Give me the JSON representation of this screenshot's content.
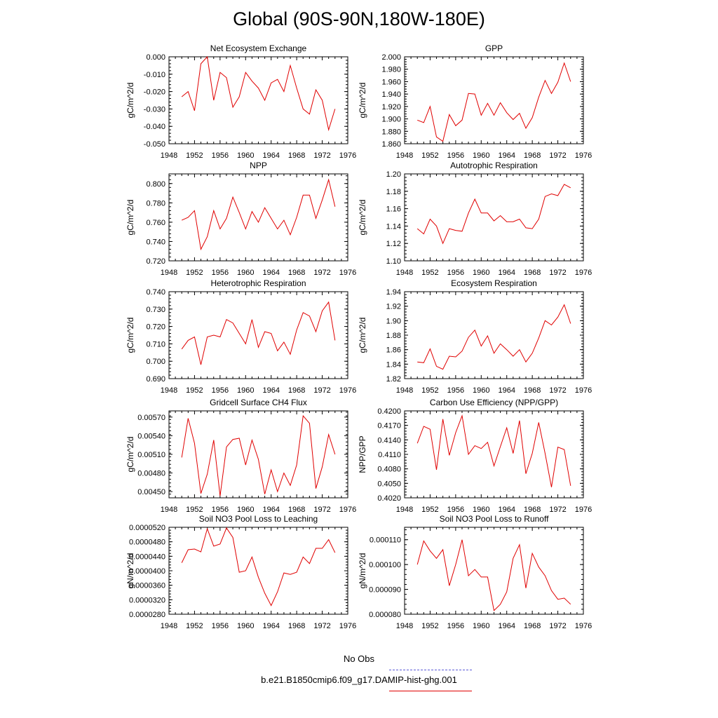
{
  "title": "Global (90S-90N,180W-180E)",
  "x_tick_labels": [
    "1948",
    "1952",
    "1956",
    "1960",
    "1964",
    "1968",
    "1972",
    "1976"
  ],
  "legend": [
    {
      "label": "No Obs",
      "color": "#5a5ad8",
      "style": "dashed"
    },
    {
      "label": "b.e21.B1850cmip6.f09_g17.DAMIP-hist-ghg.001",
      "color": "#e00000",
      "style": "solid"
    }
  ],
  "line_color": "#e00000",
  "chart_data": [
    {
      "type": "line",
      "title": "Net Ecosystem Exchange",
      "ylabel": "gC/m^2/d",
      "xlim": [
        1948,
        1976
      ],
      "ylim": [
        -0.05,
        0.0
      ],
      "y_ticks": [
        "0.000",
        "-0.010",
        "-0.020",
        "-0.030",
        "-0.040",
        "-0.050"
      ],
      "x": [
        1950,
        1951,
        1952,
        1953,
        1954,
        1955,
        1956,
        1957,
        1958,
        1959,
        1960,
        1961,
        1962,
        1963,
        1964,
        1965,
        1966,
        1967,
        1968,
        1969,
        1970,
        1971,
        1972,
        1973,
        1974
      ],
      "values": [
        -0.023,
        -0.02,
        -0.031,
        -0.004,
        0.0,
        -0.025,
        -0.009,
        -0.012,
        -0.029,
        -0.023,
        -0.009,
        -0.014,
        -0.018,
        -0.025,
        -0.015,
        -0.013,
        -0.02,
        -0.005,
        -0.018,
        -0.03,
        -0.033,
        -0.019,
        -0.025,
        -0.042,
        -0.03
      ]
    },
    {
      "type": "line",
      "title": "GPP",
      "ylabel": "gC/m^2/d",
      "xlim": [
        1948,
        1976
      ],
      "ylim": [
        1.86,
        2.0
      ],
      "y_ticks": [
        "2.000",
        "1.980",
        "1.960",
        "1.940",
        "1.920",
        "1.900",
        "1.880",
        "1.860"
      ],
      "x": [
        1950,
        1951,
        1952,
        1953,
        1954,
        1955,
        1956,
        1957,
        1958,
        1959,
        1960,
        1961,
        1962,
        1963,
        1964,
        1965,
        1966,
        1967,
        1968,
        1969,
        1970,
        1971,
        1972,
        1973,
        1974
      ],
      "values": [
        1.898,
        1.894,
        1.92,
        1.871,
        1.864,
        1.907,
        1.889,
        1.898,
        1.941,
        1.94,
        1.906,
        1.925,
        1.906,
        1.926,
        1.91,
        1.899,
        1.909,
        1.885,
        1.902,
        1.935,
        1.962,
        1.941,
        1.959,
        1.99,
        1.96
      ]
    },
    {
      "type": "line",
      "title": "NPP",
      "ylabel": "gC/m^2/d",
      "xlim": [
        1948,
        1976
      ],
      "ylim": [
        0.72,
        0.81
      ],
      "y_ticks": [
        "0.800",
        "0.780",
        "0.760",
        "0.740",
        "0.720"
      ],
      "x": [
        1950,
        1951,
        1952,
        1953,
        1954,
        1955,
        1956,
        1957,
        1958,
        1959,
        1960,
        1961,
        1962,
        1963,
        1964,
        1965,
        1966,
        1967,
        1968,
        1969,
        1970,
        1971,
        1972,
        1973,
        1974
      ],
      "values": [
        0.762,
        0.765,
        0.772,
        0.732,
        0.745,
        0.772,
        0.753,
        0.764,
        0.786,
        0.77,
        0.753,
        0.771,
        0.76,
        0.775,
        0.764,
        0.753,
        0.762,
        0.747,
        0.765,
        0.788,
        0.788,
        0.764,
        0.783,
        0.804,
        0.776
      ]
    },
    {
      "type": "line",
      "title": "Autotrophic Respiration",
      "ylabel": "gC/m^2/d",
      "xlim": [
        1948,
        1976
      ],
      "ylim": [
        1.1,
        1.2
      ],
      "y_ticks": [
        "1.20",
        "1.18",
        "1.16",
        "1.14",
        "1.12",
        "1.10"
      ],
      "x": [
        1950,
        1951,
        1952,
        1953,
        1954,
        1955,
        1956,
        1957,
        1958,
        1959,
        1960,
        1961,
        1962,
        1963,
        1964,
        1965,
        1966,
        1967,
        1968,
        1969,
        1970,
        1971,
        1972,
        1973,
        1974
      ],
      "values": [
        1.137,
        1.131,
        1.148,
        1.14,
        1.12,
        1.137,
        1.135,
        1.134,
        1.155,
        1.171,
        1.155,
        1.155,
        1.146,
        1.152,
        1.145,
        1.145,
        1.148,
        1.138,
        1.137,
        1.148,
        1.174,
        1.177,
        1.175,
        1.188,
        1.184
      ]
    },
    {
      "type": "line",
      "title": "Heterotrophic Respiration",
      "ylabel": "gC/m^2/d",
      "xlim": [
        1948,
        1976
      ],
      "ylim": [
        0.69,
        0.74
      ],
      "y_ticks": [
        "0.740",
        "0.730",
        "0.720",
        "0.710",
        "0.700",
        "0.690"
      ],
      "x": [
        1950,
        1951,
        1952,
        1953,
        1954,
        1955,
        1956,
        1957,
        1958,
        1959,
        1960,
        1961,
        1962,
        1963,
        1964,
        1965,
        1966,
        1967,
        1968,
        1969,
        1970,
        1971,
        1972,
        1973,
        1974
      ],
      "values": [
        0.707,
        0.712,
        0.714,
        0.698,
        0.714,
        0.715,
        0.714,
        0.724,
        0.722,
        0.716,
        0.71,
        0.724,
        0.708,
        0.717,
        0.716,
        0.706,
        0.711,
        0.704,
        0.718,
        0.728,
        0.726,
        0.717,
        0.729,
        0.734,
        0.712
      ]
    },
    {
      "type": "line",
      "title": "Ecosystem Respiration",
      "ylabel": "gC/m^2/d",
      "xlim": [
        1948,
        1976
      ],
      "ylim": [
        1.82,
        1.94
      ],
      "y_ticks": [
        "1.94",
        "1.92",
        "1.90",
        "1.88",
        "1.86",
        "1.84",
        "1.82"
      ],
      "x": [
        1950,
        1951,
        1952,
        1953,
        1954,
        1955,
        1956,
        1957,
        1958,
        1959,
        1960,
        1961,
        1962,
        1963,
        1964,
        1965,
        1966,
        1967,
        1968,
        1969,
        1970,
        1971,
        1972,
        1973,
        1974
      ],
      "values": [
        1.843,
        1.842,
        1.861,
        1.837,
        1.833,
        1.851,
        1.85,
        1.858,
        1.877,
        1.887,
        1.865,
        1.879,
        1.855,
        1.868,
        1.86,
        1.851,
        1.86,
        1.843,
        1.855,
        1.876,
        1.9,
        1.894,
        1.905,
        1.922,
        1.896
      ]
    },
    {
      "type": "line",
      "title": "Gridcell Surface CH4 Flux",
      "ylabel": "gC/m^2/d",
      "xlim": [
        1948,
        1976
      ],
      "ylim": [
        0.0044,
        0.0058
      ],
      "y_ticks": [
        "0.00570",
        "0.00540",
        "0.00510",
        "0.00480",
        "0.00450"
      ],
      "x": [
        1950,
        1951,
        1952,
        1953,
        1954,
        1955,
        1956,
        1957,
        1958,
        1959,
        1960,
        1961,
        1962,
        1963,
        1964,
        1965,
        1966,
        1967,
        1968,
        1969,
        1970,
        1971,
        1972,
        1973,
        1974
      ],
      "values": [
        0.00505,
        0.00568,
        0.00528,
        0.00447,
        0.00478,
        0.00533,
        0.00443,
        0.00522,
        0.00534,
        0.00536,
        0.00493,
        0.00533,
        0.00502,
        0.00446,
        0.00485,
        0.0045,
        0.0048,
        0.0046,
        0.00493,
        0.00572,
        0.0056,
        0.00455,
        0.0049,
        0.00542,
        0.0051
      ]
    },
    {
      "type": "line",
      "title": "Carbon Use Efficiency (NPP/GPP)",
      "ylabel": "NPP/GPP",
      "xlim": [
        1948,
        1976
      ],
      "ylim": [
        0.402,
        0.42
      ],
      "y_ticks": [
        "0.4200",
        "0.4170",
        "0.4140",
        "0.4110",
        "0.4080",
        "0.4050",
        "0.4020"
      ],
      "x": [
        1950,
        1951,
        1952,
        1953,
        1954,
        1955,
        1956,
        1957,
        1958,
        1959,
        1960,
        1961,
        1962,
        1963,
        1964,
        1965,
        1966,
        1967,
        1968,
        1969,
        1970,
        1971,
        1972,
        1973,
        1974
      ],
      "values": [
        0.4133,
        0.4168,
        0.4162,
        0.4078,
        0.4183,
        0.4108,
        0.4155,
        0.419,
        0.411,
        0.4128,
        0.4122,
        0.4135,
        0.4086,
        0.4126,
        0.4165,
        0.4112,
        0.418,
        0.407,
        0.4112,
        0.4176,
        0.4112,
        0.4042,
        0.4125,
        0.412,
        0.4045
      ]
    },
    {
      "type": "line",
      "title": "Soil NO3 Pool Loss to Leaching",
      "ylabel": "gN/m^2/d",
      "xlim": [
        1948,
        1976
      ],
      "ylim": [
        2.8e-05,
        5.2e-05
      ],
      "y_ticks": [
        "0.0000520",
        "0.0000480",
        "0.0000440",
        "0.0000400",
        "0.0000360",
        "0.0000320",
        "0.0000280"
      ],
      "x": [
        1950,
        1951,
        1952,
        1953,
        1954,
        1955,
        1956,
        1957,
        1958,
        1959,
        1960,
        1961,
        1962,
        1963,
        1964,
        1965,
        1966,
        1967,
        1968,
        1969,
        1970,
        1971,
        1972,
        1973,
        1974
      ],
      "values": [
        4.22e-05,
        4.58e-05,
        4.6e-05,
        4.52e-05,
        5.16e-05,
        4.68e-05,
        4.74e-05,
        5.18e-05,
        4.92e-05,
        3.96e-05,
        4e-05,
        4.38e-05,
        3.82e-05,
        3.38e-05,
        3.04e-05,
        3.42e-05,
        3.94e-05,
        3.9e-05,
        3.96e-05,
        4.38e-05,
        4.2e-05,
        4.62e-05,
        4.62e-05,
        4.86e-05,
        4.5e-05
      ]
    },
    {
      "type": "line",
      "title": "Soil NO3 Pool Loss to Runoff",
      "ylabel": "gN/m^2/d",
      "xlim": [
        1948,
        1976
      ],
      "ylim": [
        8e-05,
        0.000115
      ],
      "y_ticks": [
        "0.000110",
        "0.000100",
        "0.000090",
        "0.000080"
      ],
      "x": [
        1950,
        1951,
        1952,
        1953,
        1954,
        1955,
        1956,
        1957,
        1958,
        1959,
        1960,
        1961,
        1962,
        1963,
        1964,
        1965,
        1966,
        1967,
        1968,
        1969,
        1970,
        1971,
        1972,
        1973,
        1974
      ],
      "values": [
        0.0001,
        0.0001095,
        0.0001055,
        0.0001025,
        0.000106,
        9.15e-05,
        0.0001,
        0.00011,
        9.55e-05,
        9.8e-05,
        9.5e-05,
        9.5e-05,
        8.15e-05,
        8.4e-05,
        8.9e-05,
        0.0001025,
        0.000108,
        9.05e-05,
        0.0001045,
        9.9e-05,
        9.55e-05,
        8.95e-05,
        8.6e-05,
        8.65e-05,
        8.4e-05
      ]
    }
  ]
}
